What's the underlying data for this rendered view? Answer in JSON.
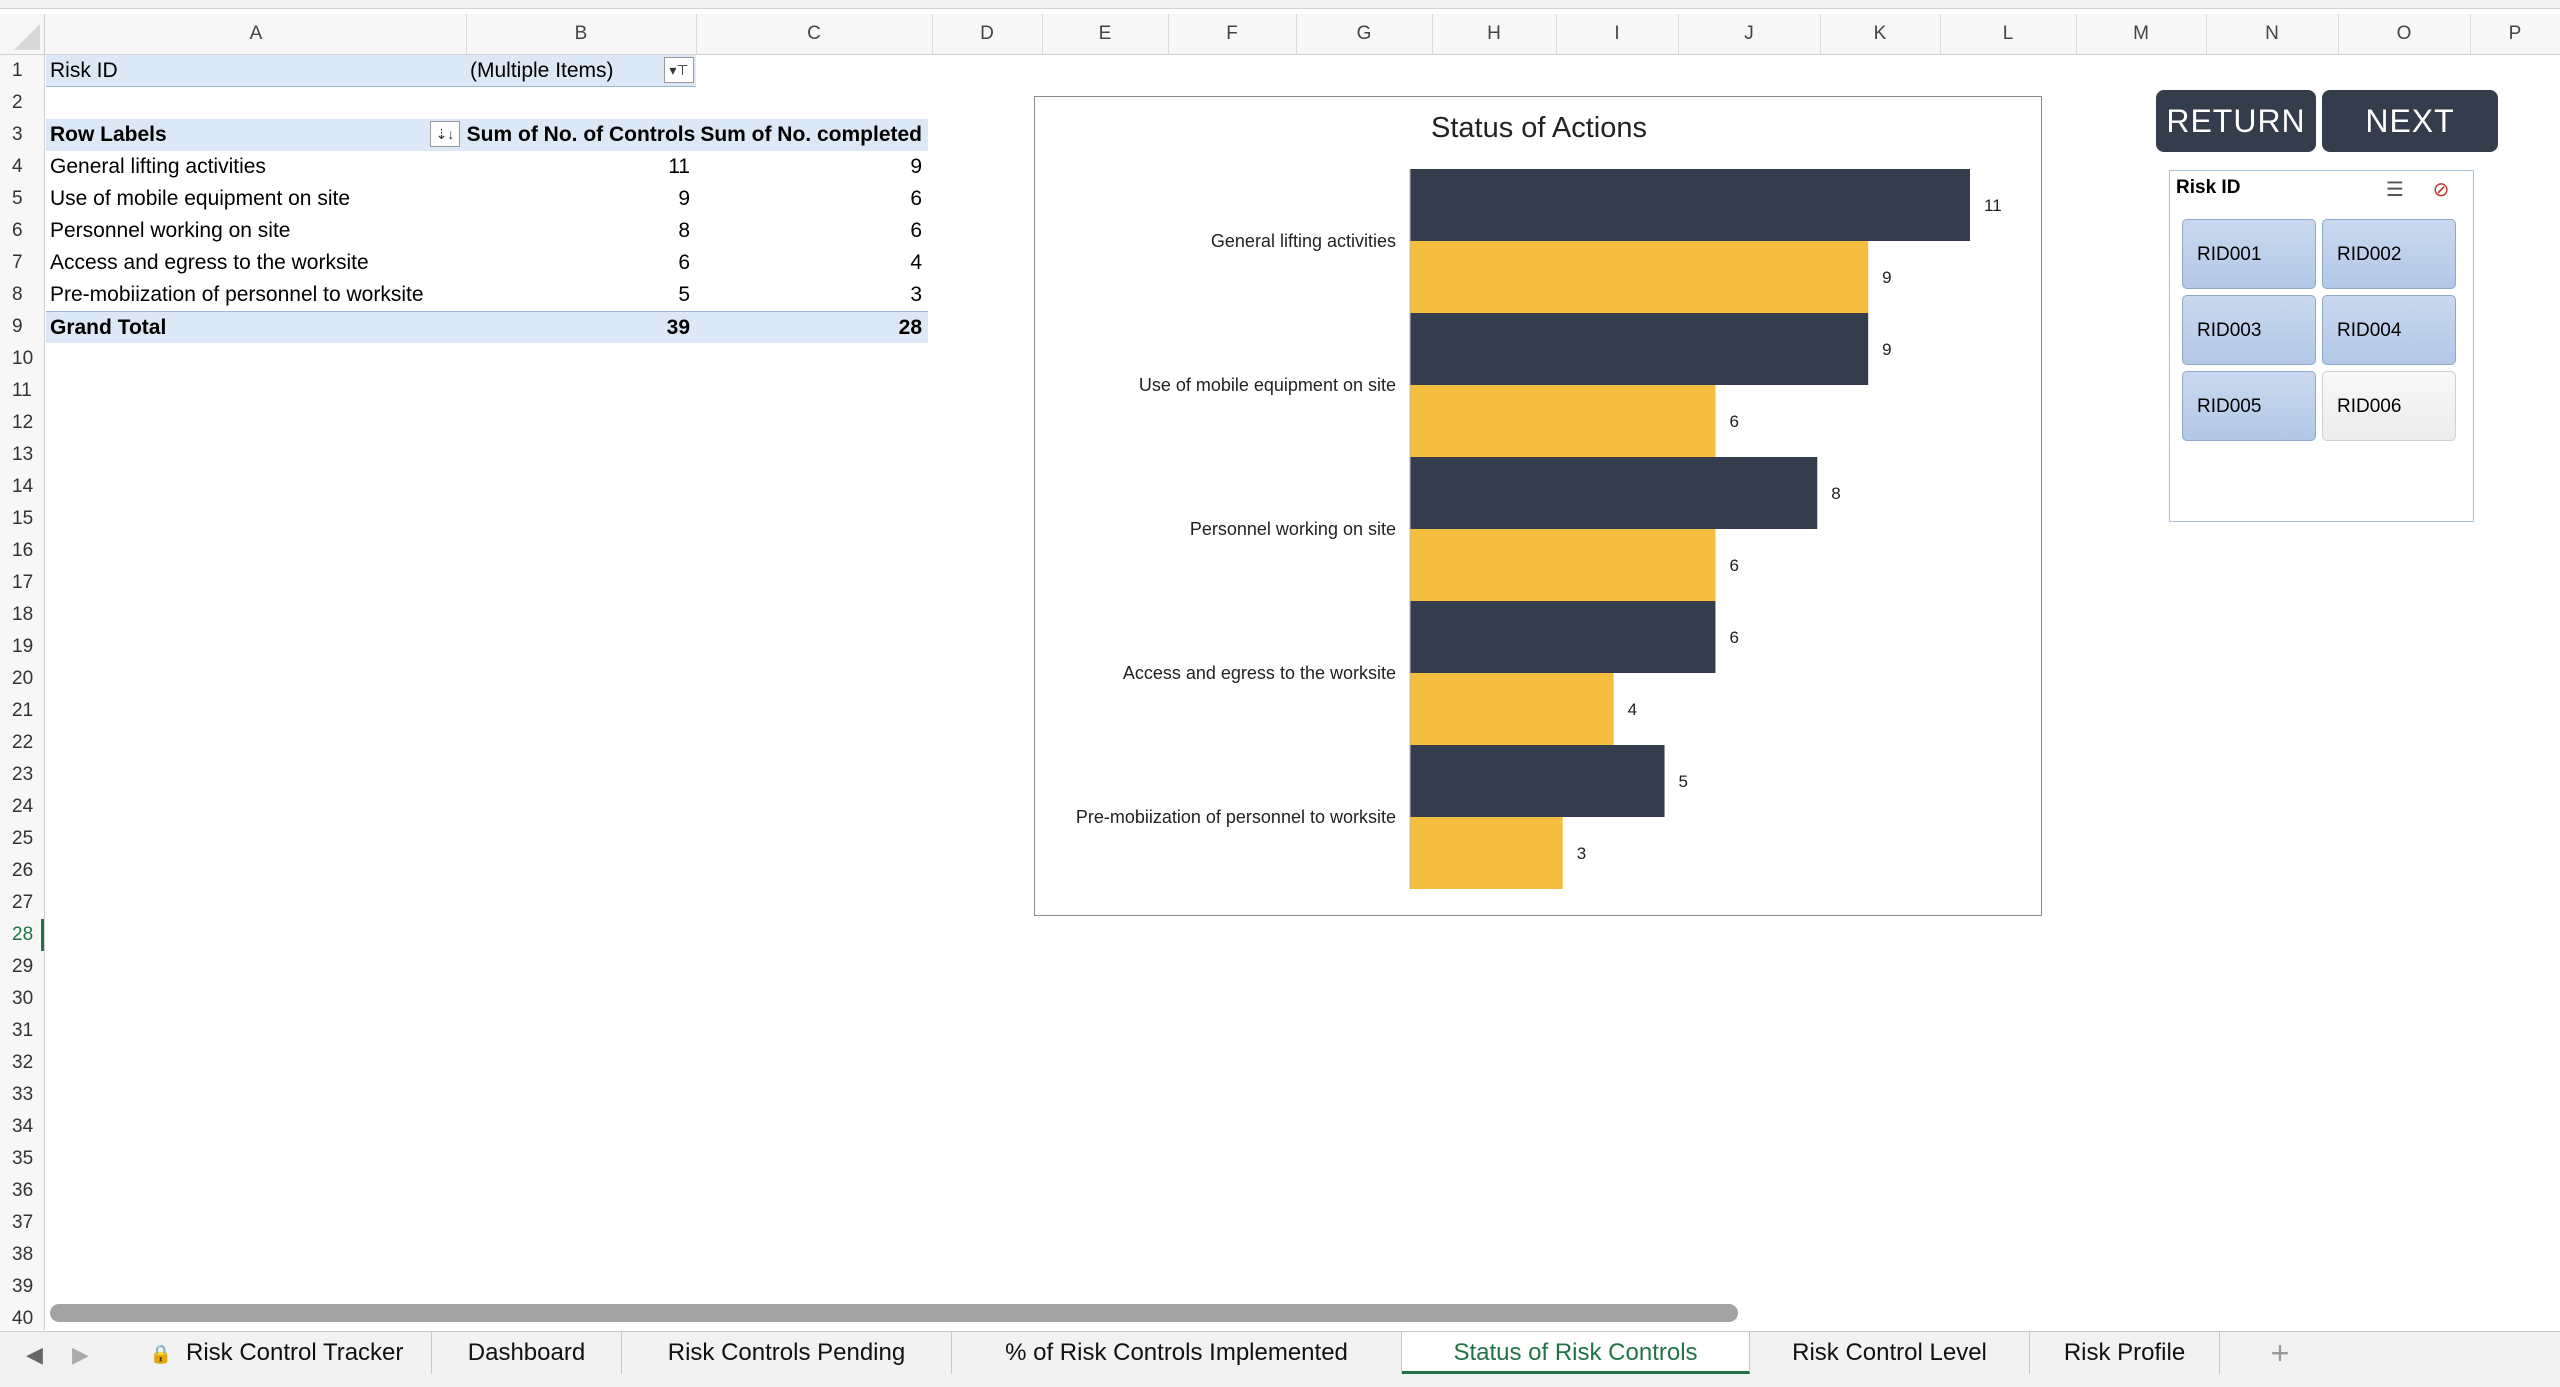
{
  "columns": [
    "A",
    "B",
    "C",
    "D",
    "E",
    "F",
    "G",
    "H",
    "I",
    "J",
    "K",
    "L",
    "M",
    "N",
    "O",
    "P"
  ],
  "rows": [
    "1",
    "2",
    "3",
    "4",
    "5",
    "6",
    "7",
    "8",
    "9",
    "10",
    "11",
    "12",
    "13",
    "14",
    "15",
    "16",
    "17",
    "18",
    "19",
    "20",
    "21",
    "22",
    "23",
    "24",
    "25",
    "26",
    "27",
    "28",
    "29",
    "30",
    "31",
    "32",
    "33",
    "34",
    "35",
    "36",
    "37",
    "38",
    "39",
    "40"
  ],
  "active_row": "28",
  "filter": {
    "label": "Risk ID",
    "value": "(Multiple Items)"
  },
  "pivot": {
    "headers": [
      "Row Labels",
      "Sum of No. of Controls",
      "Sum of No. completed"
    ],
    "rows": [
      {
        "label": "General lifting activities",
        "controls": "11",
        "completed": "9"
      },
      {
        "label": "Use of mobile equipment on site",
        "controls": "9",
        "completed": "6"
      },
      {
        "label": "Personnel working on site",
        "controls": "8",
        "completed": "6"
      },
      {
        "label": "Access and egress to the worksite",
        "controls": "6",
        "completed": "4"
      },
      {
        "label": "Pre-mobiization of personnel to worksite",
        "controls": "5",
        "completed": "3"
      }
    ],
    "total": {
      "label": "Grand Total",
      "controls": "39",
      "completed": "28"
    }
  },
  "chart_data": {
    "type": "bar",
    "orientation": "horizontal",
    "title": "Status of Actions",
    "categories": [
      "General lifting activities",
      "Use of mobile equipment on site",
      "Personnel working on site",
      "Access and egress to the worksite",
      "Pre-mobiization of personnel to worksite"
    ],
    "series": [
      {
        "values": [
          11,
          9,
          8,
          6,
          5
        ],
        "color": "#333d4c"
      },
      {
        "values": [
          9,
          6,
          6,
          4,
          3
        ],
        "color": "#f5be3e"
      }
    ],
    "xlim": [
      0,
      11
    ],
    "data_labels": true,
    "grid": false,
    "legend": "none"
  },
  "buttons": {
    "return_label": "RETURN",
    "next_label": "NEXT"
  },
  "slicer": {
    "title": "Risk ID",
    "items": [
      {
        "label": "RID001",
        "selected": true
      },
      {
        "label": "RID002",
        "selected": true
      },
      {
        "label": "RID003",
        "selected": true
      },
      {
        "label": "RID004",
        "selected": true
      },
      {
        "label": "RID005",
        "selected": true
      },
      {
        "label": "RID006",
        "selected": false
      }
    ]
  },
  "tabs": [
    {
      "label": "Risk Control Tracker",
      "locked": true,
      "active": false
    },
    {
      "label": "Dashboard",
      "locked": false,
      "active": false
    },
    {
      "label": "Risk Controls Pending",
      "locked": false,
      "active": false
    },
    {
      "label": "% of Risk Controls Implemented",
      "locked": false,
      "active": false
    },
    {
      "label": "Status of Risk Controls",
      "locked": false,
      "active": true
    },
    {
      "label": "Risk Control Level",
      "locked": false,
      "active": false
    },
    {
      "label": "Risk Profile",
      "locked": false,
      "active": false
    }
  ],
  "colors": {
    "accent": "#217346",
    "bar_dark": "#333d4c",
    "bar_yellow": "#f5be3e",
    "pivot_fill": "#dce8f5"
  }
}
